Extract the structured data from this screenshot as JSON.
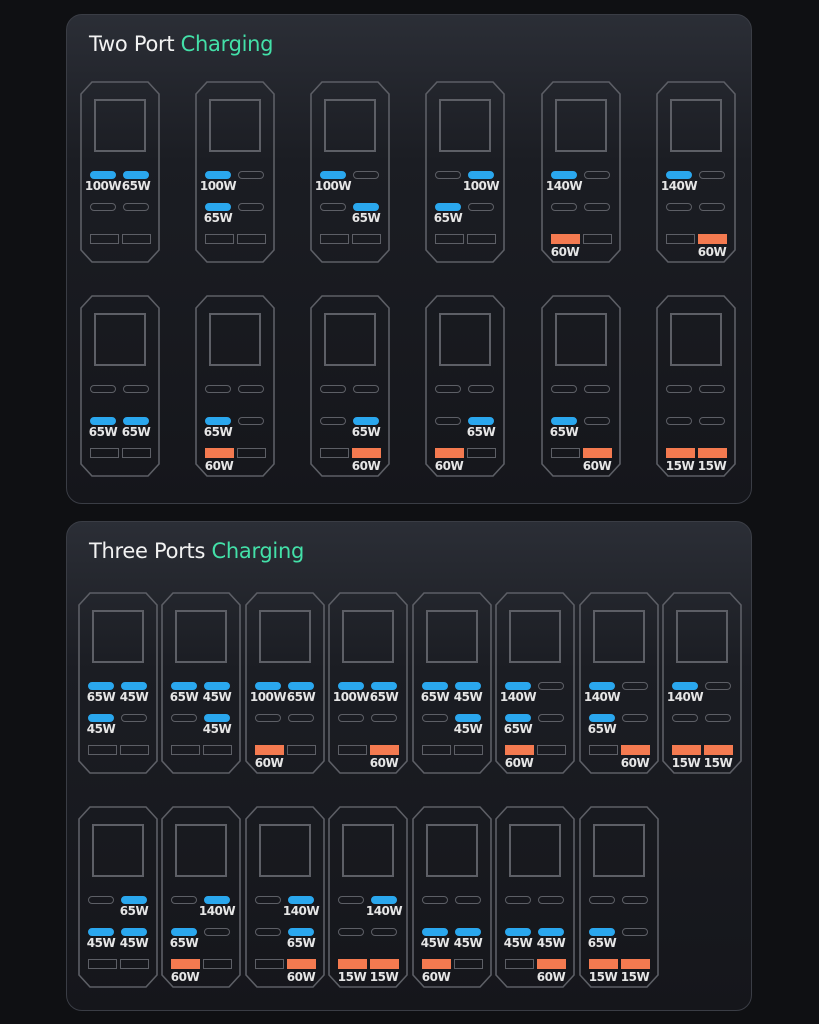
{
  "colors": {
    "usb_c_active": "#2aa7ee",
    "usb_a_active": "#f47a50",
    "accent_text": "#43e0a8",
    "watt_unit": "#3fdca0"
  },
  "sections": [
    {
      "title_prefix": "Two Port",
      "title_accent": "Charging",
      "rows": [
        [
          {
            "usb_c": [
              "100W",
              "65W",
              "",
              ""
            ],
            "usb_a": [
              "",
              ""
            ]
          },
          {
            "usb_c": [
              "100W",
              "",
              "65W",
              ""
            ],
            "usb_a": [
              "",
              ""
            ]
          },
          {
            "usb_c": [
              "100W",
              "",
              "",
              "65W"
            ],
            "usb_a": [
              "",
              ""
            ]
          },
          {
            "usb_c": [
              "",
              "100W",
              "65W",
              ""
            ],
            "usb_a": [
              "",
              ""
            ]
          },
          {
            "usb_c": [
              "140W",
              "",
              "",
              ""
            ],
            "usb_a": [
              "60W",
              ""
            ]
          },
          {
            "usb_c": [
              "140W",
              "",
              "",
              ""
            ],
            "usb_a": [
              "",
              "60W"
            ]
          }
        ],
        [
          {
            "usb_c": [
              "",
              "",
              "65W",
              "65W"
            ],
            "usb_a": [
              "",
              ""
            ]
          },
          {
            "usb_c": [
              "",
              "",
              "65W",
              ""
            ],
            "usb_a": [
              "60W",
              ""
            ]
          },
          {
            "usb_c": [
              "",
              "",
              "",
              "65W"
            ],
            "usb_a": [
              "",
              "60W"
            ]
          },
          {
            "usb_c": [
              "",
              "",
              "",
              "65W"
            ],
            "usb_a": [
              "60W",
              ""
            ]
          },
          {
            "usb_c": [
              "",
              "",
              "65W",
              ""
            ],
            "usb_a": [
              "",
              "60W"
            ]
          },
          {
            "usb_c": [
              "",
              "",
              "",
              ""
            ],
            "usb_a": [
              "15W",
              "15W"
            ]
          }
        ]
      ]
    },
    {
      "title_prefix": "Three Ports",
      "title_accent": "Charging",
      "rows": [
        [
          {
            "usb_c": [
              "65W",
              "45W",
              "45W",
              ""
            ],
            "usb_a": [
              "",
              ""
            ]
          },
          {
            "usb_c": [
              "65W",
              "45W",
              "",
              "45W"
            ],
            "usb_a": [
              "",
              ""
            ]
          },
          {
            "usb_c": [
              "100W",
              "65W",
              "",
              ""
            ],
            "usb_a": [
              "60W",
              ""
            ]
          },
          {
            "usb_c": [
              "100W",
              "65W",
              "",
              ""
            ],
            "usb_a": [
              "",
              "60W"
            ]
          },
          {
            "usb_c": [
              "65W",
              "45W",
              "",
              "45W"
            ],
            "usb_a": [
              "",
              ""
            ]
          },
          {
            "usb_c": [
              "140W",
              "",
              "65W",
              ""
            ],
            "usb_a": [
              "60W",
              ""
            ]
          },
          {
            "usb_c": [
              "140W",
              "",
              "65W",
              ""
            ],
            "usb_a": [
              "",
              "60W"
            ]
          },
          {
            "usb_c": [
              "140W",
              "",
              "",
              ""
            ],
            "usb_a": [
              "15W",
              "15W"
            ]
          }
        ],
        [
          {
            "usb_c": [
              "",
              "65W",
              "45W",
              "45W"
            ],
            "usb_a": [
              "",
              ""
            ]
          },
          {
            "usb_c": [
              "",
              "140W",
              "65W",
              ""
            ],
            "usb_a": [
              "60W",
              ""
            ]
          },
          {
            "usb_c": [
              "",
              "140W",
              "",
              "65W"
            ],
            "usb_a": [
              "",
              "60W"
            ]
          },
          {
            "usb_c": [
              "",
              "140W",
              "",
              ""
            ],
            "usb_a": [
              "15W",
              "15W"
            ]
          },
          {
            "usb_c": [
              "",
              "",
              "45W",
              "45W"
            ],
            "usb_a": [
              "60W",
              ""
            ]
          },
          {
            "usb_c": [
              "",
              "",
              "45W",
              "45W"
            ],
            "usb_a": [
              "",
              "60W"
            ]
          },
          {
            "usb_c": [
              "",
              "",
              "65W",
              ""
            ],
            "usb_a": [
              "15W",
              "15W"
            ]
          }
        ]
      ]
    }
  ]
}
